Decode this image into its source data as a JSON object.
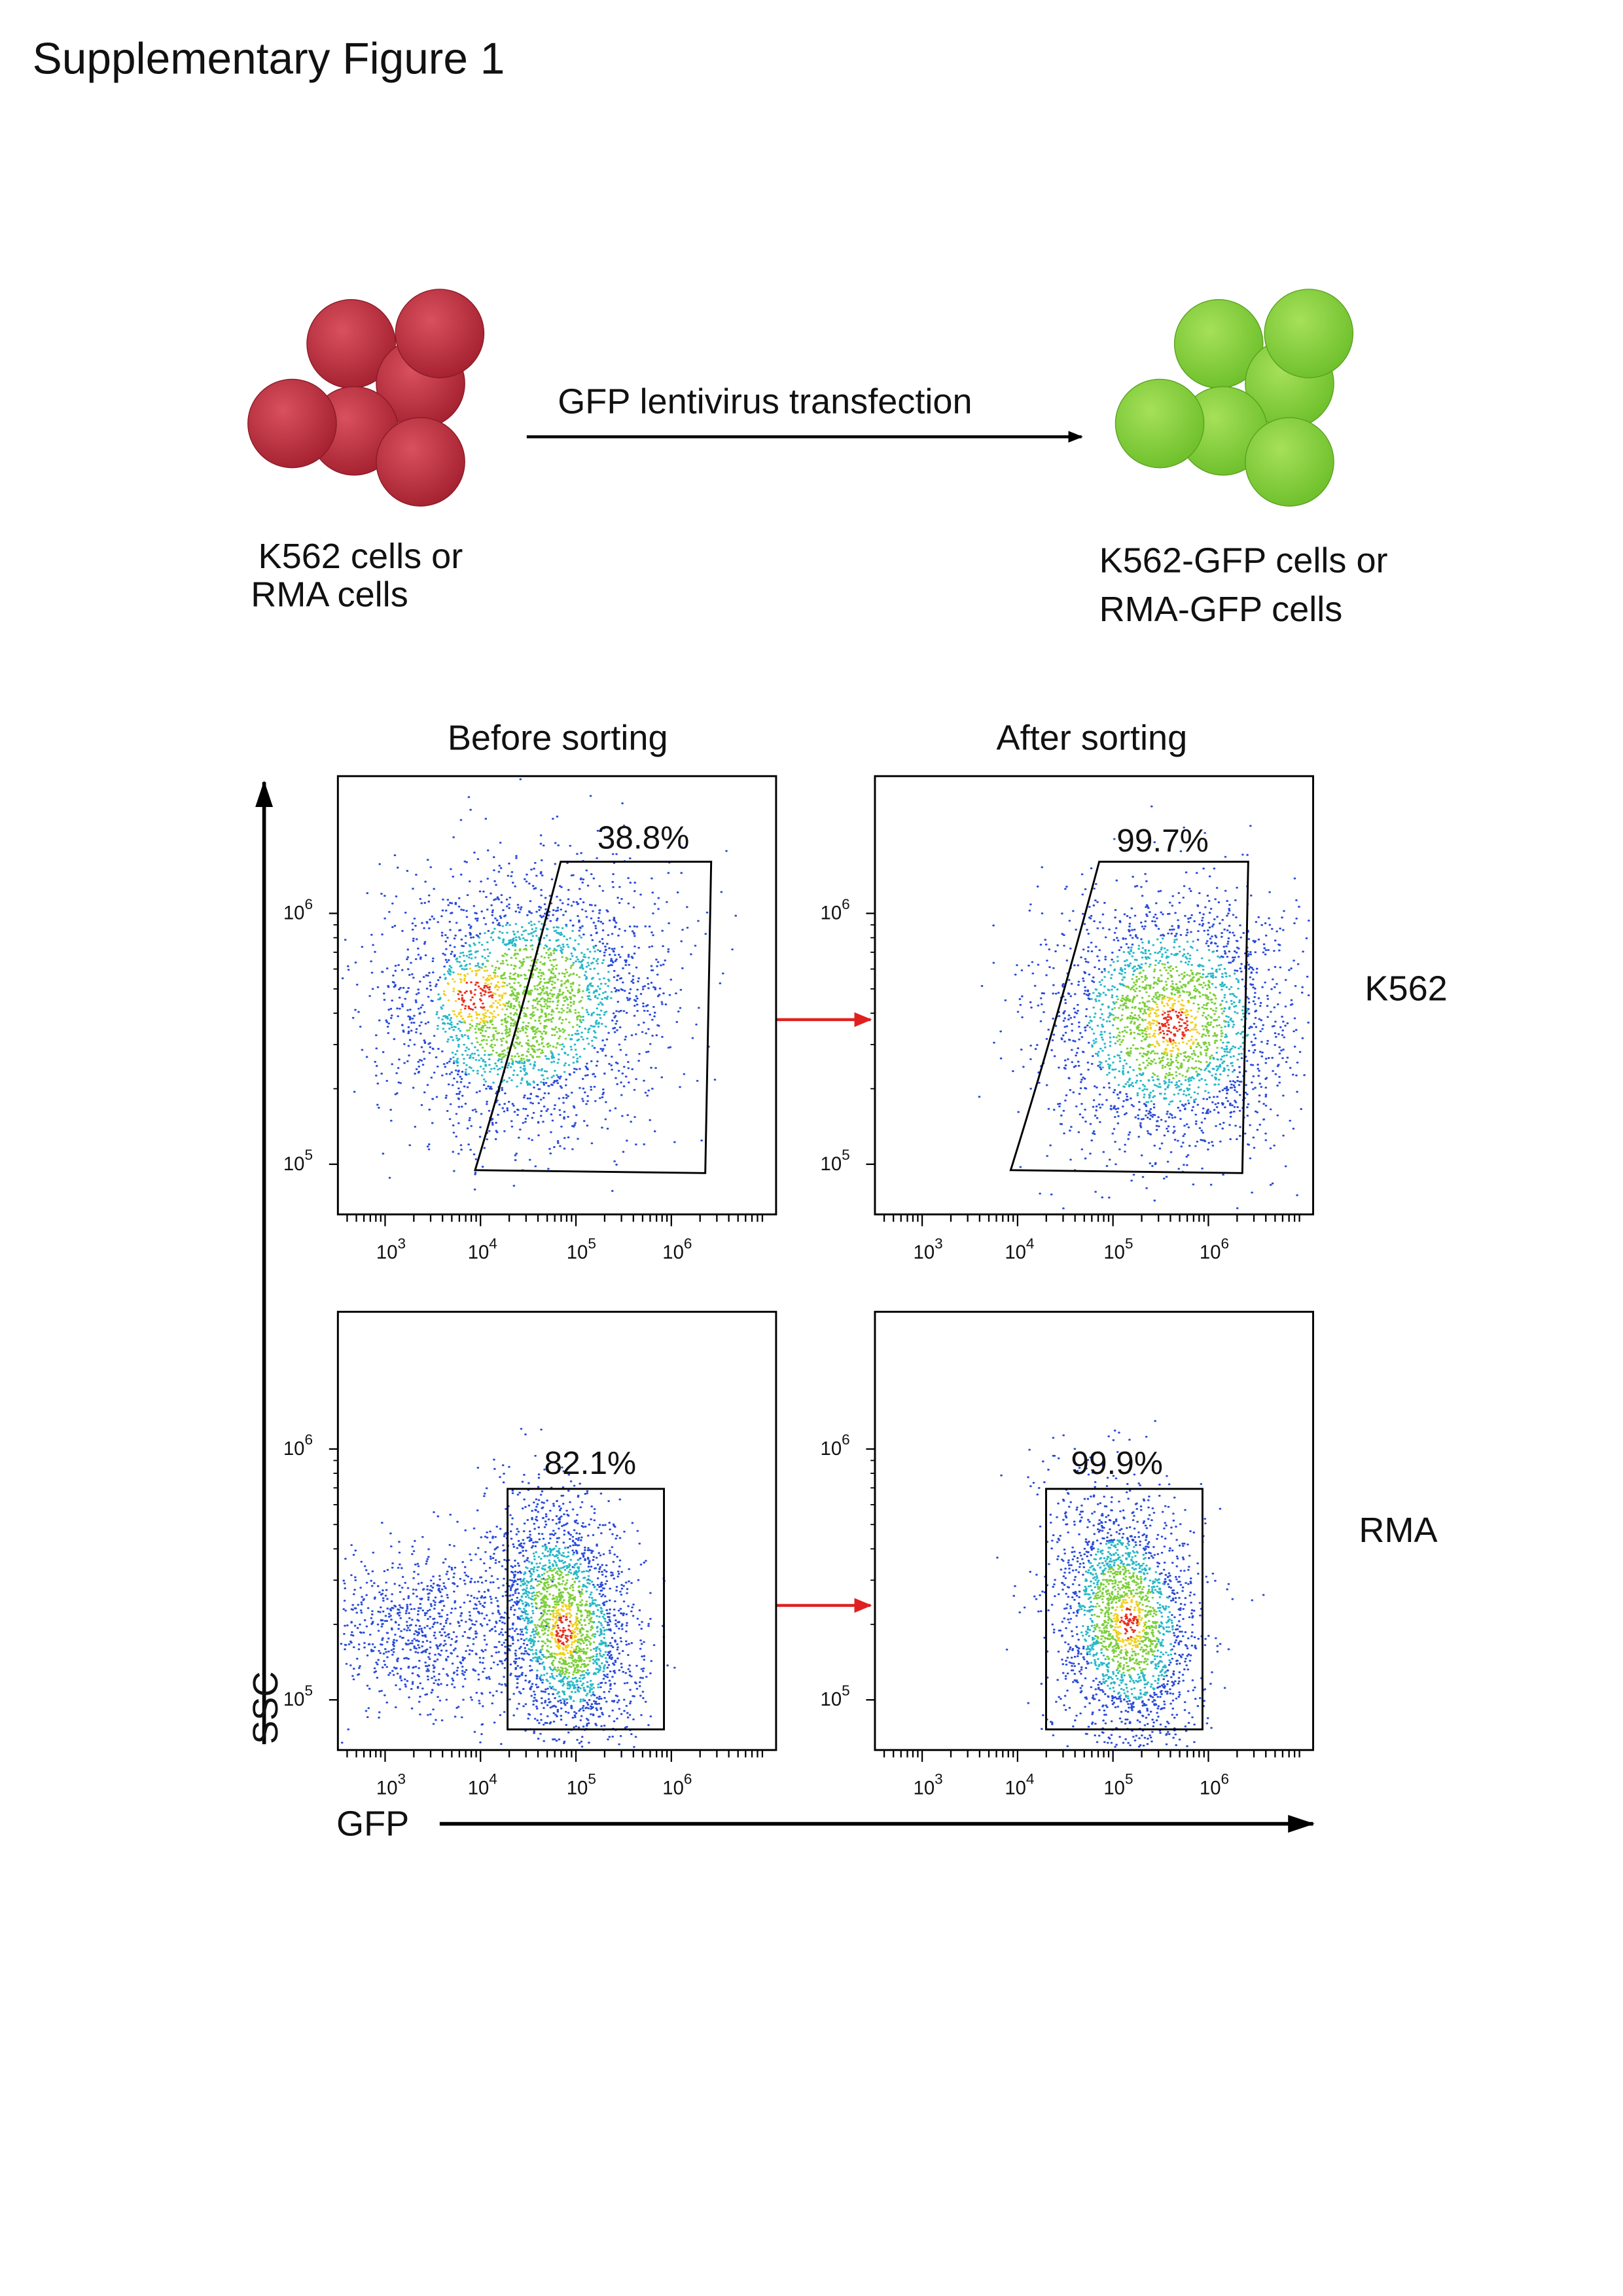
{
  "title": "Supplementary Figure 1",
  "schematic": {
    "arrow_label": "GFP lentivirus transfection",
    "before_label": [
      "K562 cells or",
      "RMA cells"
    ],
    "after_label": [
      "K562-GFP cells or",
      "RMA-GFP cells"
    ]
  },
  "columns": [
    "Before sorting",
    "After sorting"
  ],
  "rows": [
    "K562",
    "RMA"
  ],
  "axes": {
    "y_label": "SSC",
    "x_label": "GFP",
    "x_ticks": [
      {
        "base": "10",
        "exponent": "3"
      },
      {
        "base": "10",
        "exponent": "4"
      },
      {
        "base": "10",
        "exponent": "5"
      },
      {
        "base": "10",
        "exponent": "6"
      }
    ],
    "y_ticks": [
      {
        "base": "10",
        "exponent": "6"
      },
      {
        "base": "10",
        "exponent": "5"
      }
    ]
  },
  "gates": [
    [
      "38.8%",
      "99.7%"
    ],
    [
      "82.1%",
      "99.9%"
    ]
  ]
}
